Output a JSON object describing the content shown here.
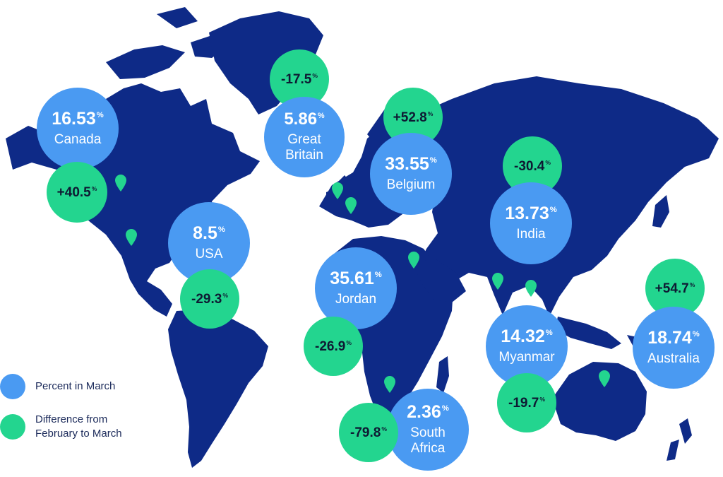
{
  "colors": {
    "land": "#0e2a87",
    "percent_bubble": "#4a9af2",
    "difference_bubble": "#23d58f",
    "pin": "#23d58f",
    "background": "#ffffff"
  },
  "legend": {
    "percent_label": "Percent in March",
    "difference_label": "Difference from February to March"
  },
  "countries": [
    {
      "name": "Canada",
      "percent": "16.53",
      "difference": "+40.5"
    },
    {
      "name": "Great Britain",
      "percent": "5.86",
      "difference": "-17.5"
    },
    {
      "name": "Belgium",
      "percent": "33.55",
      "difference": "+52.8"
    },
    {
      "name": "India",
      "percent": "13.73",
      "difference": "-30.4"
    },
    {
      "name": "USA",
      "percent": "8.5",
      "difference": "-29.3"
    },
    {
      "name": "Jordan",
      "percent": "35.61",
      "difference": "-26.9"
    },
    {
      "name": "Myanmar",
      "percent": "14.32",
      "difference": "-19.7"
    },
    {
      "name": "Australia",
      "percent": "18.74",
      "difference": "+54.7"
    },
    {
      "name": "South Africa",
      "percent": "2.36",
      "difference": "-79.8"
    }
  ],
  "unit": "%",
  "pin_icon": "map-pin-icon"
}
